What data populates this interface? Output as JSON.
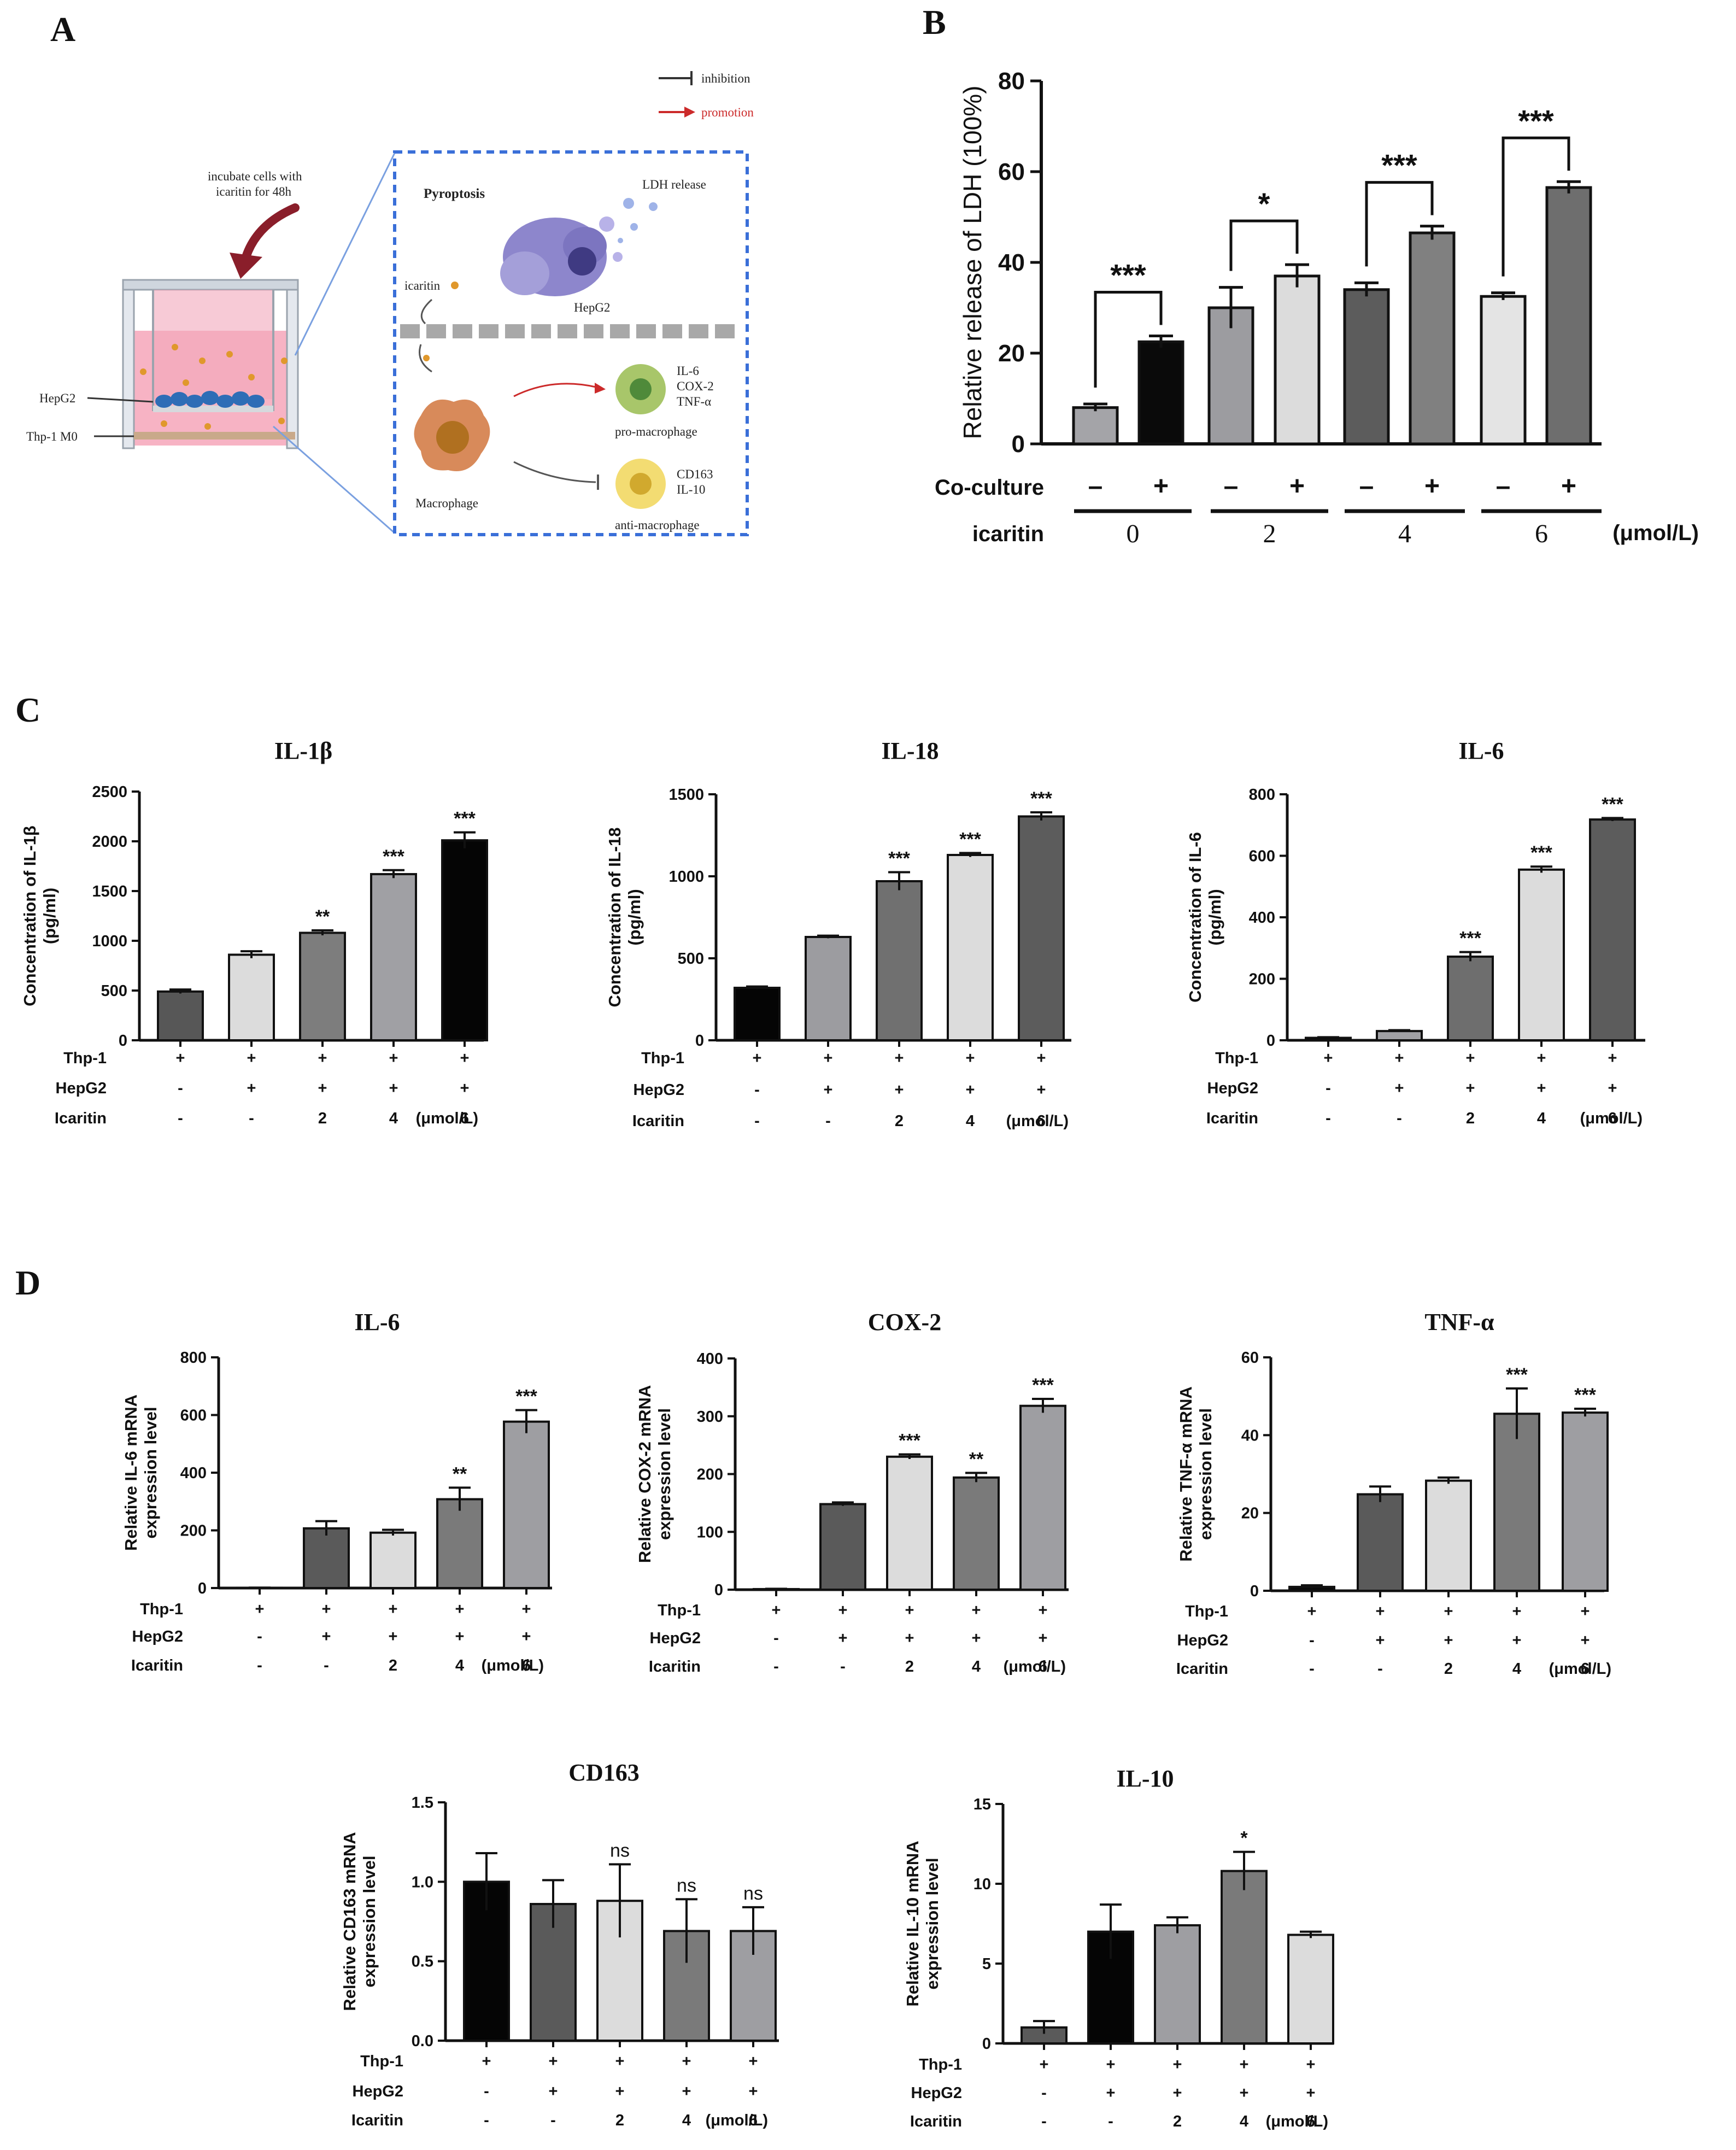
{
  "panels": {
    "A": "A",
    "B": "B",
    "C": "C",
    "D": "D"
  },
  "diagram": {
    "legend_inhibition": "inhibition",
    "legend_promotion": "promotion",
    "incubate": [
      "incubate cells with",
      "icaritin for 48h"
    ],
    "hepg2_label": "HepG2",
    "thp1_label": "Thp-1 M0",
    "pyroptosis": "Pyroptosis",
    "ldh_release": "LDH release",
    "hepg2_cell": "HepG2",
    "icaritin": "icaritin",
    "pro_markers": [
      "IL-6",
      "COX-2",
      "TNF-α"
    ],
    "pro_label": "pro-macrophage",
    "macrophage": "Macrophage",
    "anti_markers": [
      "CD163",
      "IL-10"
    ],
    "anti_label": "anti-macrophage",
    "colors": {
      "pink": "#f7b3c4",
      "frame": "#3a6fd8",
      "promotion": "#cc2a2a",
      "inhibition": "#555555"
    }
  },
  "chart_data": [
    {
      "id": "B",
      "type": "bar",
      "title": "",
      "ylabel": "Relative release of LDH (100%)",
      "ylim": [
        0,
        80
      ],
      "yticks": [
        0,
        20,
        40,
        60,
        80
      ],
      "values": [
        8,
        22.5,
        30,
        37,
        34,
        46.5,
        32.5,
        56.5
      ],
      "errors": [
        0.8,
        1.3,
        4.5,
        2.5,
        1.5,
        1.5,
        0.8,
        1.3
      ],
      "colors": [
        "#a4a4a8",
        "#0a0a0a",
        "#9c9ca0",
        "#dcdcdc",
        "#5c5c5c",
        "#808080",
        "#e4e4e4",
        "#6e6e6e"
      ],
      "rows": [
        {
          "label": "Co-culture",
          "values": [
            "–",
            "+",
            "–",
            "+",
            "–",
            "+",
            "–",
            "+"
          ]
        }
      ],
      "groups": [
        "0",
        "2",
        "4",
        "6"
      ],
      "group_row_label": "icaritin",
      "unit": "(μmol/L)",
      "brackets": [
        {
          "from": 0,
          "to": 1,
          "sig": "***"
        },
        {
          "from": 2,
          "to": 3,
          "sig": "*"
        },
        {
          "from": 4,
          "to": 5,
          "sig": "***"
        },
        {
          "from": 6,
          "to": 7,
          "sig": "***"
        }
      ]
    },
    {
      "id": "C1",
      "type": "bar",
      "title": "IL-1β",
      "ylabel": [
        "Concentration of IL-1β",
        "(pg/ml)"
      ],
      "ylim": [
        0,
        2500
      ],
      "yticks": [
        0,
        500,
        1000,
        1500,
        2000,
        2500
      ],
      "values": [
        490,
        860,
        1080,
        1670,
        2010
      ],
      "errors": [
        20,
        35,
        25,
        40,
        80
      ],
      "colors": [
        "#575757",
        "#dcdcdc",
        "#7d7d7d",
        "#a0a0a4",
        "#050505"
      ],
      "sig": [
        "",
        "",
        "**",
        "***",
        "***"
      ],
      "rows": [
        {
          "label": "Thp-1",
          "values": [
            "+",
            "+",
            "+",
            "+",
            "+"
          ]
        },
        {
          "label": "HepG2",
          "values": [
            "-",
            "+",
            "+",
            "+",
            "+"
          ]
        },
        {
          "label": "Icaritin",
          "values": [
            "-",
            "-",
            "2",
            "4",
            "6"
          ]
        }
      ],
      "unit": "(μmol/L)"
    },
    {
      "id": "C2",
      "type": "bar",
      "title": "IL-18",
      "ylabel": [
        "Concentration of IL-18",
        "(pg/ml)"
      ],
      "ylim": [
        0,
        1500
      ],
      "yticks": [
        0,
        500,
        1000,
        1500
      ],
      "values": [
        320,
        630,
        970,
        1130,
        1365
      ],
      "errors": [
        8,
        8,
        55,
        12,
        25
      ],
      "colors": [
        "#050505",
        "#9c9ca0",
        "#707070",
        "#dcdcdc",
        "#5c5c5c"
      ],
      "sig": [
        "",
        "",
        "***",
        "***",
        "***"
      ],
      "rows": [
        {
          "label": "Thp-1",
          "values": [
            "+",
            "+",
            "+",
            "+",
            "+"
          ]
        },
        {
          "label": "HepG2",
          "values": [
            "-",
            "+",
            "+",
            "+",
            "+"
          ]
        },
        {
          "label": "Icaritin",
          "values": [
            "-",
            "-",
            "2",
            "4",
            "6"
          ]
        }
      ],
      "unit": "(μmol/L)"
    },
    {
      "id": "C3",
      "type": "bar",
      "title": "IL-6",
      "ylabel": [
        "Concentration of IL-6",
        "(pg/ml)"
      ],
      "ylim": [
        0,
        800
      ],
      "yticks": [
        0,
        200,
        400,
        600,
        800
      ],
      "values": [
        8,
        30,
        272,
        555,
        718
      ],
      "errors": [
        2,
        3,
        15,
        10,
        5
      ],
      "colors": [
        "#050505",
        "#a0a0a4",
        "#6e6e6e",
        "#dcdcdc",
        "#5c5c5c"
      ],
      "sig": [
        "",
        "",
        "***",
        "***",
        "***"
      ],
      "rows": [
        {
          "label": "Thp-1",
          "values": [
            "+",
            "+",
            "+",
            "+",
            "+"
          ]
        },
        {
          "label": "HepG2",
          "values": [
            "-",
            "+",
            "+",
            "+",
            "+"
          ]
        },
        {
          "label": "Icaritin",
          "values": [
            "-",
            "-",
            "2",
            "4",
            "6"
          ]
        }
      ],
      "unit": "(μmol/L)"
    },
    {
      "id": "D1",
      "type": "bar",
      "title": "IL-6",
      "ylabel": [
        "Relative IL-6 mRNA",
        "expression level"
      ],
      "ylim": [
        0,
        800
      ],
      "yticks": [
        0,
        200,
        400,
        600,
        800
      ],
      "values": [
        1,
        207,
        192,
        308,
        577
      ],
      "errors": [
        0.5,
        25,
        10,
        40,
        40
      ],
      "colors": [
        "#0a0a0a",
        "#5a5a5a",
        "#dcdcdc",
        "#7a7a7a",
        "#9e9ea2"
      ],
      "sig": [
        "",
        "",
        "",
        "**",
        "***"
      ],
      "rows": [
        {
          "label": "Thp-1",
          "values": [
            "+",
            "+",
            "+",
            "+",
            "+"
          ]
        },
        {
          "label": "HepG2",
          "values": [
            "-",
            "+",
            "+",
            "+",
            "+"
          ]
        },
        {
          "label": "Icaritin",
          "values": [
            "-",
            "-",
            "2",
            "4",
            "6"
          ]
        }
      ],
      "unit": "(μmol/L)"
    },
    {
      "id": "D2",
      "type": "bar",
      "title": "COX-2",
      "ylabel": [
        "Relative COX-2 mRNA",
        "expression level"
      ],
      "ylim": [
        0,
        400
      ],
      "yticks": [
        0,
        100,
        200,
        300,
        400
      ],
      "values": [
        1,
        148,
        230,
        194,
        318
      ],
      "errors": [
        0.5,
        3,
        4,
        8,
        12
      ],
      "colors": [
        "#0a0a0a",
        "#5a5a5a",
        "#dcdcdc",
        "#7a7a7a",
        "#9e9ea2"
      ],
      "sig": [
        "",
        "",
        "***",
        "**",
        "***"
      ],
      "rows": [
        {
          "label": "Thp-1",
          "values": [
            "+",
            "+",
            "+",
            "+",
            "+"
          ]
        },
        {
          "label": "HepG2",
          "values": [
            "-",
            "+",
            "+",
            "+",
            "+"
          ]
        },
        {
          "label": "Icaritin",
          "values": [
            "-",
            "-",
            "2",
            "4",
            "6"
          ]
        }
      ],
      "unit": "(μmol/L)"
    },
    {
      "id": "D3",
      "type": "bar",
      "title": "TNF-α",
      "ylabel": [
        "Relative TNF-α mRNA",
        "expression level"
      ],
      "ylim": [
        0,
        60
      ],
      "yticks": [
        0,
        20,
        40,
        60
      ],
      "values": [
        1,
        24.8,
        28.3,
        45.5,
        45.8
      ],
      "errors": [
        0.4,
        2,
        0.8,
        6.5,
        1
      ],
      "colors": [
        "#0a0a0a",
        "#5a5a5a",
        "#dcdcdc",
        "#7a7a7a",
        "#9e9ea2"
      ],
      "sig": [
        "",
        "",
        "",
        "***",
        "***"
      ],
      "rows": [
        {
          "label": "Thp-1",
          "values": [
            "+",
            "+",
            "+",
            "+",
            "+"
          ]
        },
        {
          "label": "HepG2",
          "values": [
            "-",
            "+",
            "+",
            "+",
            "+"
          ]
        },
        {
          "label": "Icaritin",
          "values": [
            "-",
            "-",
            "2",
            "4",
            "6"
          ]
        }
      ],
      "unit": "(μmol/L)"
    },
    {
      "id": "D4",
      "type": "bar",
      "title": "CD163",
      "ylabel": [
        "Relative CD163 mRNA",
        "expression level"
      ],
      "ylim": [
        0,
        1.5
      ],
      "yticks": [
        0,
        0.5,
        1.0,
        1.5
      ],
      "tickLabels": [
        "0.0",
        "0.5",
        "1.0",
        "1.5"
      ],
      "values": [
        1.0,
        0.86,
        0.88,
        0.69,
        0.69
      ],
      "errors": [
        0.18,
        0.15,
        0.23,
        0.2,
        0.15
      ],
      "colors": [
        "#050505",
        "#5a5a5a",
        "#dcdcdc",
        "#7a7a7a",
        "#9e9ea2"
      ],
      "sig": [
        "",
        "",
        "ns",
        "ns",
        "ns"
      ],
      "rows": [
        {
          "label": "Thp-1",
          "values": [
            "+",
            "+",
            "+",
            "+",
            "+"
          ]
        },
        {
          "label": "HepG2",
          "values": [
            "-",
            "+",
            "+",
            "+",
            "+"
          ]
        },
        {
          "label": "Icaritin",
          "values": [
            "-",
            "-",
            "2",
            "4",
            "6"
          ]
        }
      ],
      "unit": "(μmol/L)"
    },
    {
      "id": "D5",
      "type": "bar",
      "title": "IL-10",
      "ylabel": [
        "Relative IL-10 mRNA",
        "expression level"
      ],
      "ylim": [
        0,
        15
      ],
      "yticks": [
        0,
        5,
        10,
        15
      ],
      "values": [
        1.0,
        7.0,
        7.4,
        10.8,
        6.8
      ],
      "errors": [
        0.4,
        1.7,
        0.5,
        1.2,
        0.2
      ],
      "colors": [
        "#5a5a5a",
        "#050505",
        "#9e9ea2",
        "#7a7a7a",
        "#dcdcdc"
      ],
      "sig": [
        "",
        "",
        "",
        "*",
        ""
      ],
      "rows": [
        {
          "label": "Thp-1",
          "values": [
            "+",
            "+",
            "+",
            "+",
            "+"
          ]
        },
        {
          "label": "HepG2",
          "values": [
            "-",
            "+",
            "+",
            "+",
            "+"
          ]
        },
        {
          "label": "Icaritin",
          "values": [
            "-",
            "-",
            "2",
            "4",
            "6"
          ]
        }
      ],
      "unit": "(μmol/L)"
    }
  ]
}
